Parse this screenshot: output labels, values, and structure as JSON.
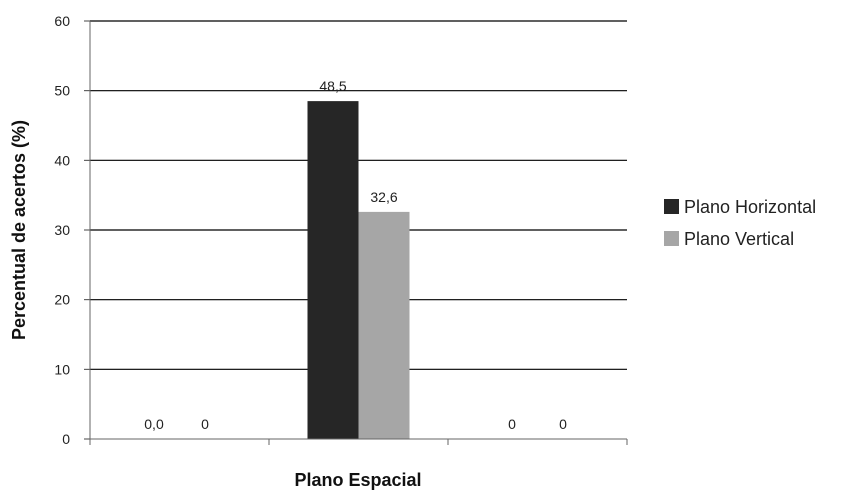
{
  "chart_data": {
    "type": "bar",
    "categories": [
      "",
      "",
      ""
    ],
    "series": [
      {
        "name": "Plano Horizontal",
        "values": [
          0.0,
          48.5,
          0
        ],
        "labels": [
          "0,0",
          "48,5",
          "0"
        ],
        "color": "#262626"
      },
      {
        "name": "Plano Vertical",
        "values": [
          0,
          32.6,
          0
        ],
        "labels": [
          "0",
          "32,6",
          "0"
        ],
        "color": "#a6a6a6"
      }
    ],
    "xlabel": "Plano Espacial",
    "ylabel": "Percentual de acertos (%)",
    "ylim": [
      0,
      60
    ],
    "yticks": [
      0,
      10,
      20,
      30,
      40,
      50,
      60
    ],
    "grid": true,
    "legend_position": "right"
  }
}
